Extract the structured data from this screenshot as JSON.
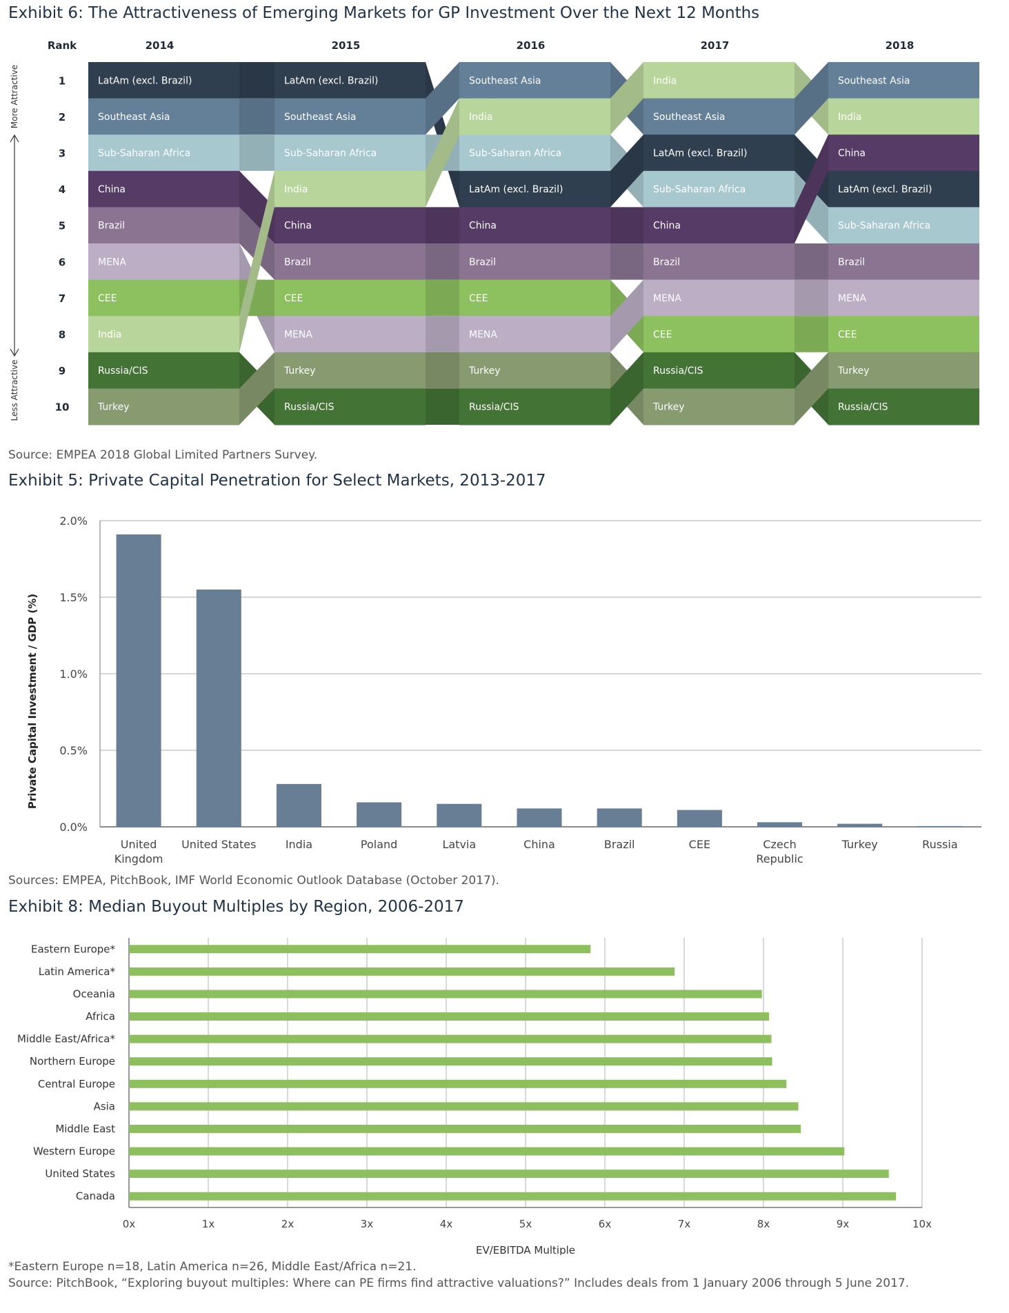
{
  "exhibit6": {
    "title": "Exhibit 6: The Attractiveness of Emerging Markets for GP Investment Over the Next 12 Months",
    "source": "Source: EMPEA 2018 Global Limited Partners Survey.",
    "rank_header": "Rank",
    "more_attractive": "More Attractive",
    "less_attractive": "Less Attractive",
    "ranks": [
      "1",
      "2",
      "3",
      "4",
      "5",
      "6",
      "7",
      "8",
      "9",
      "10"
    ],
    "colors": {
      "LatAm (excl. Brazil)": "#2f3f50",
      "Southeast Asia": "#647f98",
      "Sub-Saharan Africa": "#a8c8d0",
      "China": "#573b67",
      "Brazil": "#8a7491",
      "MENA": "#bbaec5",
      "CEE": "#8dc05e",
      "India": "#b8d59b",
      "Russia/CIS": "#437335",
      "Turkey": "#879a70"
    }
  },
  "exhibit5": {
    "title": "Exhibit 5: Private Capital Penetration for Select Markets, 2013-2017",
    "source": "Sources: EMPEA, PitchBook, IMF World Economic Outlook Database (October 2017).",
    "bar_color": "#677e95"
  },
  "exhibit8": {
    "title": "Exhibit 8: Median Buyout Multiples by Region, 2006-2017",
    "footnote": "*Eastern Europe n=18, Latin America n=26, Middle East/Africa n=21.",
    "source": "Source: PitchBook, “Exploring buyout multiples: Where can PE firms find attractive valuations?” Includes deals from 1 January 2006 through 5 June 2017.",
    "bar_color": "#8dbf5e"
  },
  "chart_data": [
    {
      "type": "table",
      "title": "Exhibit 6: The Attractiveness of Emerging Markets for GP Investment Over the Next 12 Months",
      "years": [
        "2014",
        "2015",
        "2016",
        "2017",
        "2018"
      ],
      "rankings": [
        [
          "LatAm (excl. Brazil)",
          "Southeast Asia",
          "Sub-Saharan Africa",
          "China",
          "Brazil",
          "MENA",
          "CEE",
          "India",
          "Russia/CIS",
          "Turkey"
        ],
        [
          "LatAm (excl. Brazil)",
          "Southeast Asia",
          "Sub-Saharan Africa",
          "India",
          "China",
          "Brazil",
          "CEE",
          "MENA",
          "Turkey",
          "Russia/CIS"
        ],
        [
          "Southeast Asia",
          "India",
          "Sub-Saharan Africa",
          "LatAm (excl. Brazil)",
          "China",
          "Brazil",
          "CEE",
          "MENA",
          "Turkey",
          "Russia/CIS"
        ],
        [
          "India",
          "Southeast Asia",
          "LatAm (excl. Brazil)",
          "Sub-Saharan Africa",
          "China",
          "Brazil",
          "MENA",
          "CEE",
          "Russia/CIS",
          "Turkey"
        ],
        [
          "Southeast Asia",
          "India",
          "China",
          "LatAm (excl. Brazil)",
          "Sub-Saharan Africa",
          "Brazil",
          "MENA",
          "CEE",
          "Turkey",
          "Russia/CIS"
        ]
      ],
      "ylabel_top": "More Attractive",
      "ylabel_bottom": "Less Attractive"
    },
    {
      "type": "bar",
      "title": "Exhibit 5: Private Capital Penetration for Select Markets, 2013-2017",
      "categories": [
        "United Kingdom",
        "United States",
        "India",
        "Poland",
        "Latvia",
        "China",
        "Brazil",
        "CEE",
        "Czech Republic",
        "Turkey",
        "Russia"
      ],
      "category_lines": [
        [
          "United",
          "Kingdom"
        ],
        [
          "United States"
        ],
        [
          "India"
        ],
        [
          "Poland"
        ],
        [
          "Latvia"
        ],
        [
          "China"
        ],
        [
          "Brazil"
        ],
        [
          "CEE"
        ],
        [
          "Czech",
          "Republic"
        ],
        [
          "Turkey"
        ],
        [
          "Russia"
        ]
      ],
      "values": [
        1.91,
        1.55,
        0.28,
        0.16,
        0.15,
        0.12,
        0.12,
        0.11,
        0.03,
        0.02,
        0.005
      ],
      "xlabel": "",
      "ylabel": "Private Capital Investment / GDP (%)",
      "ylim": [
        0,
        2.0
      ],
      "yticks": [
        0,
        0.5,
        1.0,
        1.5,
        2.0
      ],
      "ytick_labels": [
        "0.0%",
        "0.5%",
        "1.0%",
        "1.5%",
        "2.0%"
      ],
      "grid": true,
      "legend": "none"
    },
    {
      "type": "bar",
      "orientation": "horizontal",
      "title": "Exhibit 8: Median Buyout Multiples by Region, 2006-2017",
      "categories": [
        "Eastern Europe*",
        "Latin America*",
        "Oceania",
        "Africa",
        "Middle East/Africa*",
        "Northern Europe",
        "Central Europe",
        "Asia",
        "Middle East",
        "Western Europe",
        "United States",
        "Canada"
      ],
      "values": [
        5.82,
        6.88,
        7.98,
        8.07,
        8.1,
        8.11,
        8.29,
        8.44,
        8.47,
        9.02,
        9.58,
        9.67
      ],
      "xlabel": "EV/EBITDA Multiple",
      "ylabel": "",
      "xlim": [
        0,
        10
      ],
      "xticks": [
        0,
        1,
        2,
        3,
        4,
        5,
        6,
        7,
        8,
        9,
        10
      ],
      "xtick_labels": [
        "0x",
        "1x",
        "2x",
        "3x",
        "4x",
        "5x",
        "6x",
        "7x",
        "8x",
        "9x",
        "10x"
      ],
      "grid": true,
      "legend": "none"
    }
  ]
}
